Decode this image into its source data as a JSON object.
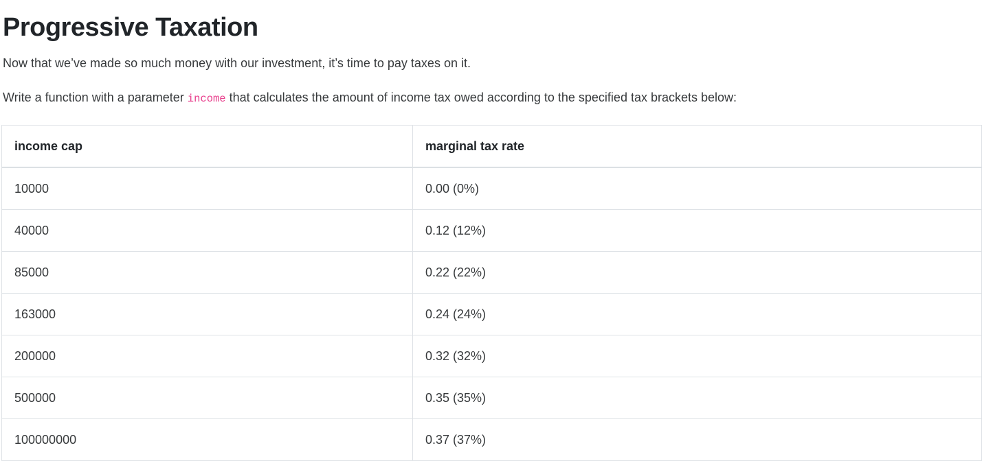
{
  "page": {
    "title": "Progressive Taxation",
    "intro": "Now that we’ve made so much money with our investment, it’s time to pay taxes on it.",
    "task": {
      "before_code": "Write a function with a parameter ",
      "code": "income",
      "after_code": " that calculates the amount of income tax owed according to the specified tax brackets below:"
    }
  },
  "table": {
    "columns": {
      "cap": "income cap",
      "rate": "marginal tax rate"
    },
    "rows": [
      {
        "cap": "10000",
        "rate": "0.00 (0%)"
      },
      {
        "cap": "40000",
        "rate": "0.12 (12%)"
      },
      {
        "cap": "85000",
        "rate": "0.22 (22%)"
      },
      {
        "cap": "163000",
        "rate": "0.24 (24%)"
      },
      {
        "cap": "200000",
        "rate": "0.32 (32%)"
      },
      {
        "cap": "500000",
        "rate": "0.35 (35%)"
      },
      {
        "cap": "100000000",
        "rate": "0.37 (37%)"
      }
    ]
  },
  "colors": {
    "inline_code": "#e83e8c",
    "table_border": "#dee2e6",
    "heading_text": "#212529"
  }
}
